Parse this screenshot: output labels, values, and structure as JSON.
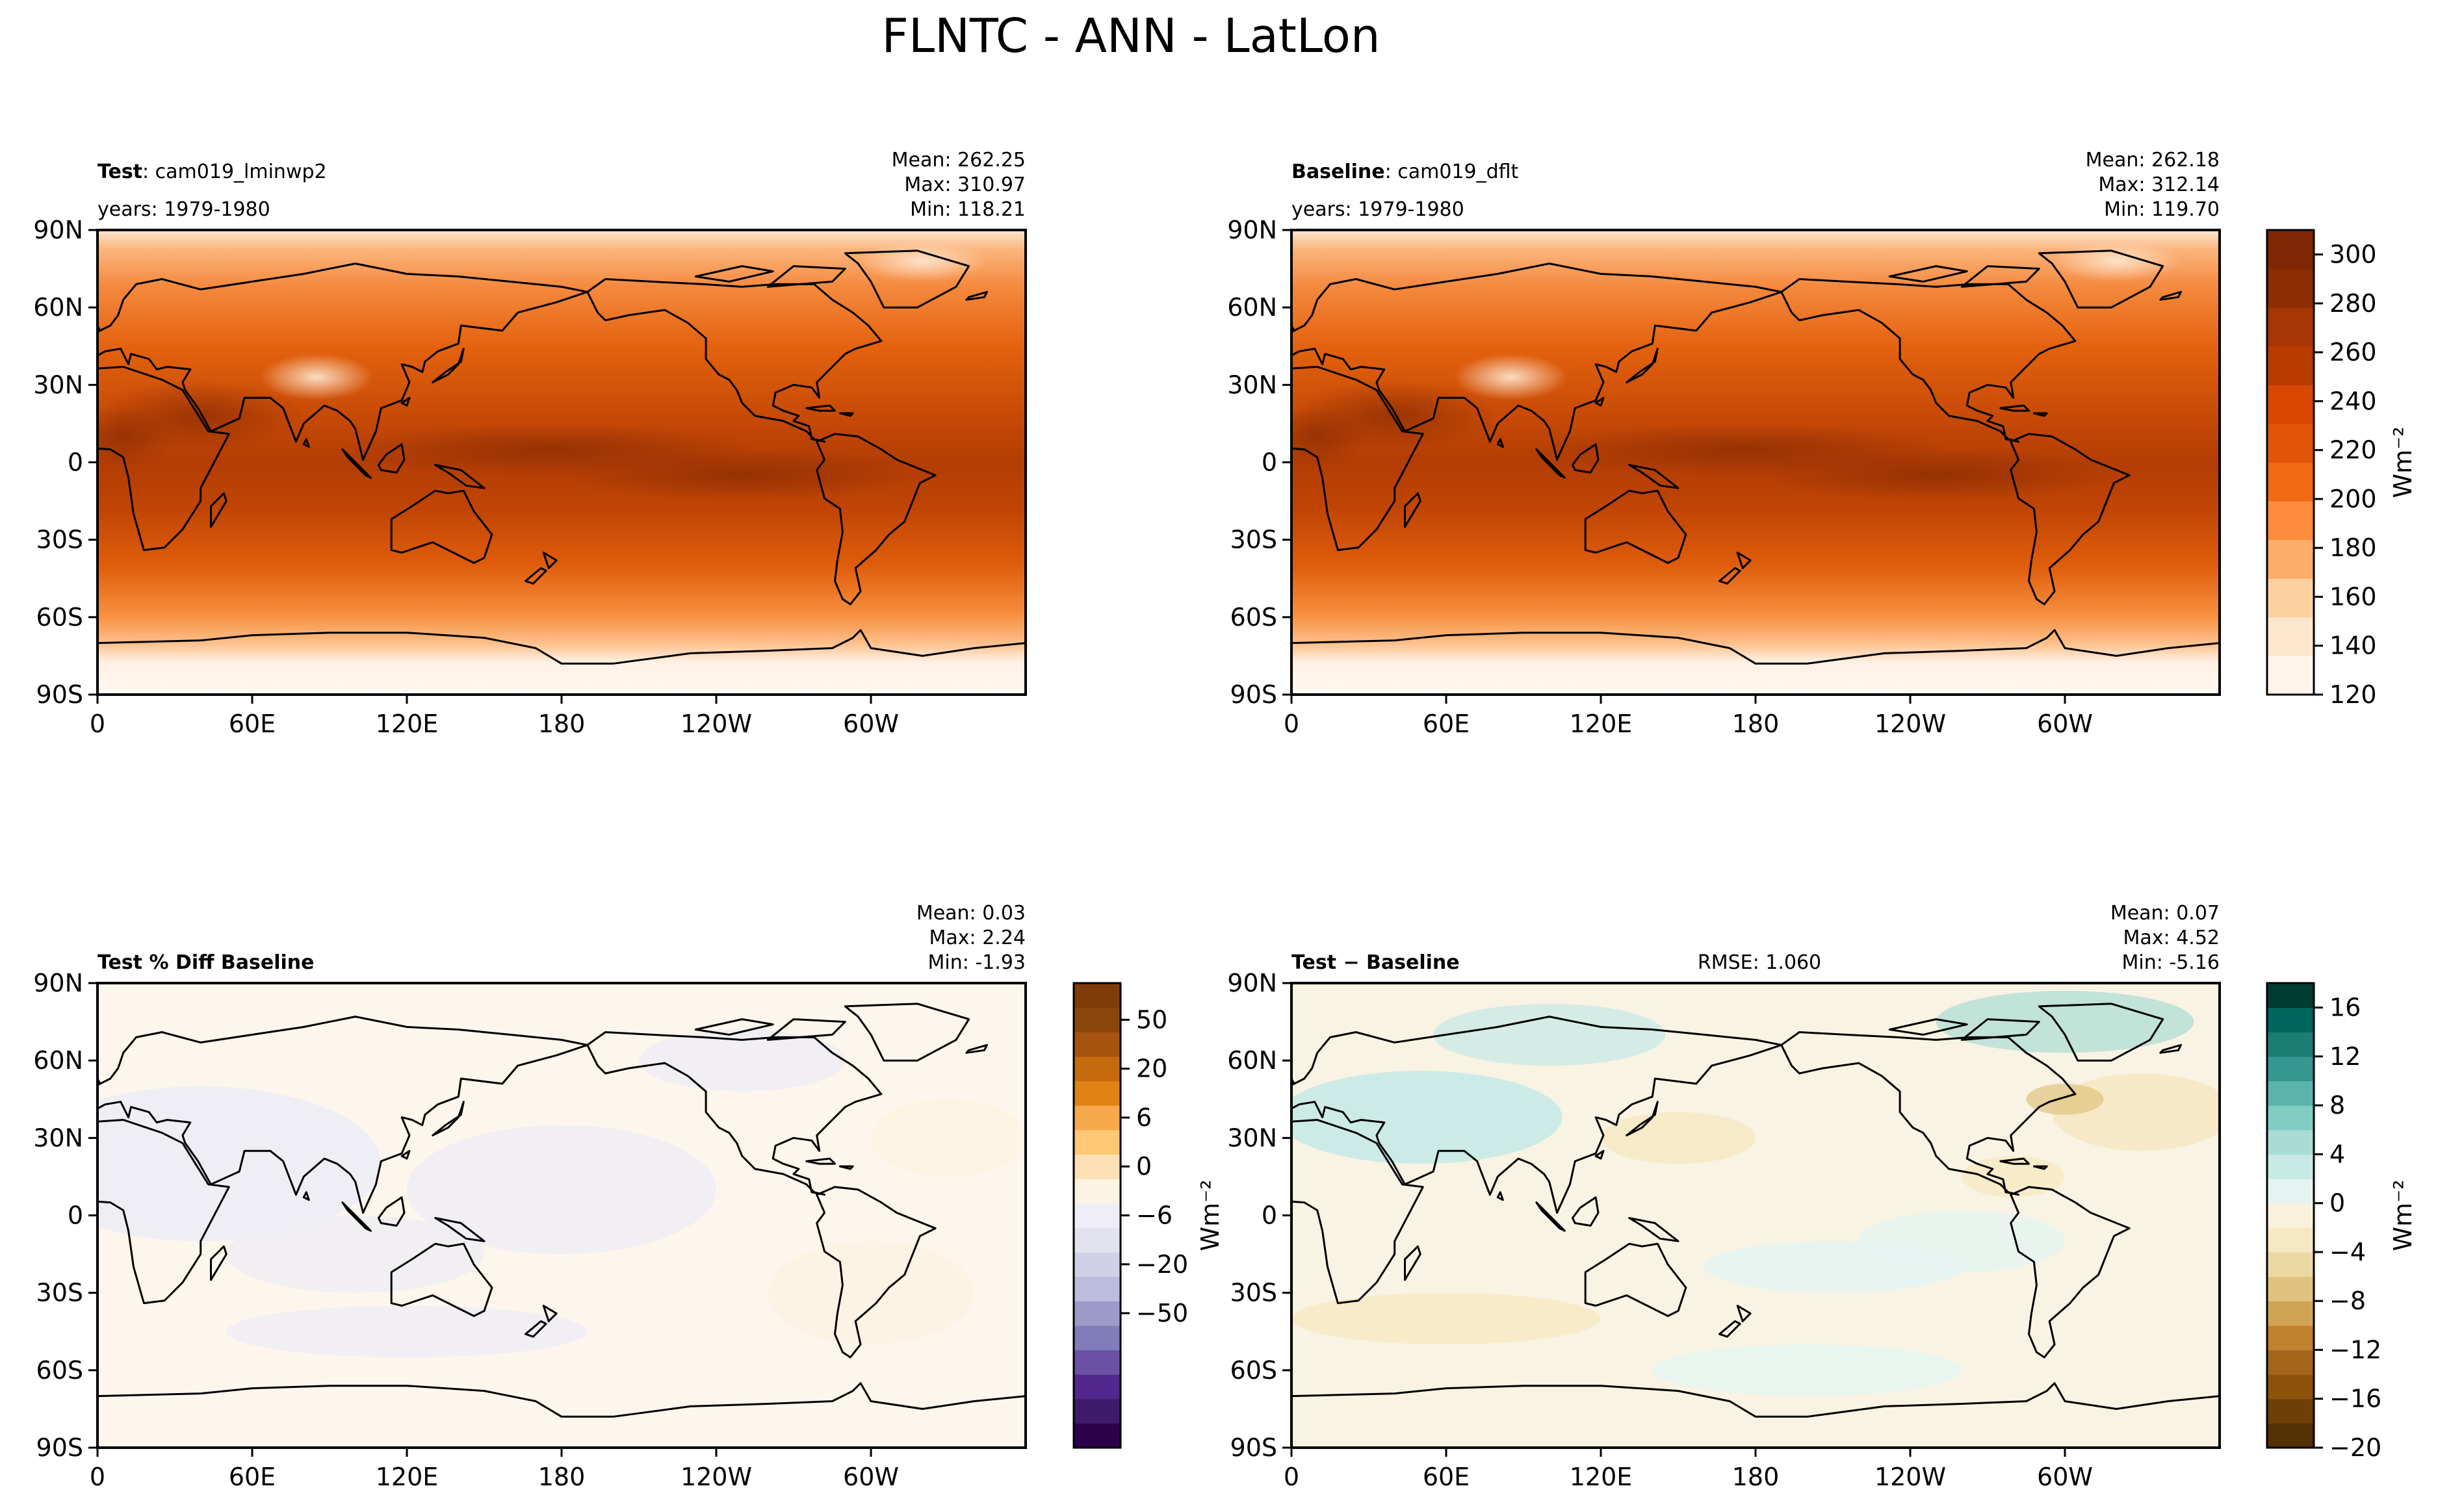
{
  "figure": {
    "title": "FLNTC - ANN - LatLon"
  },
  "chart_data": [
    {
      "type": "heatmap",
      "panel": "test",
      "label_bold": "Test",
      "label_rest": ": cam019_lminwp2",
      "years": "years: 1979-1980",
      "stats": [
        "Mean: 262.25",
        "Max: 310.97",
        "Min: 118.21"
      ],
      "x_ticks": [
        "0",
        "60E",
        "120E",
        "180",
        "120W",
        "60W"
      ],
      "y_ticks": [
        "90N",
        "60N",
        "30N",
        "0",
        "30S",
        "60S",
        "90S"
      ],
      "field": "absolute"
    },
    {
      "type": "heatmap",
      "panel": "baseline",
      "label_bold": "Baseline",
      "label_rest": ": cam019_dflt",
      "years": "years: 1979-1980",
      "stats": [
        "Mean: 262.18",
        "Max: 312.14",
        "Min: 119.70"
      ],
      "x_ticks": [
        "0",
        "60E",
        "120E",
        "180",
        "120W",
        "60W"
      ],
      "y_ticks": [
        "90N",
        "60N",
        "30N",
        "0",
        "30S",
        "60S",
        "90S"
      ],
      "field": "absolute",
      "colorbar": {
        "unit": "Wm⁻²",
        "range": [
          120,
          310
        ],
        "ticks": [
          "120",
          "140",
          "160",
          "180",
          "200",
          "220",
          "240",
          "260",
          "280",
          "300"
        ],
        "colors": [
          "#fff5eb",
          "#fee6ce",
          "#fdd0a2",
          "#fdae6b",
          "#fd8d3c",
          "#f16913",
          "#e25508",
          "#d94801",
          "#b83c02",
          "#a63603",
          "#8c2d04",
          "#7f2704"
        ]
      }
    },
    {
      "type": "heatmap",
      "panel": "pct_diff",
      "label_bold": "Test % Diff Baseline",
      "stats": [
        "Mean:  0.03",
        "Max:  2.24",
        "Min: -1.93"
      ],
      "x_ticks": [
        "0",
        "60E",
        "120E",
        "180",
        "120W",
        "60W"
      ],
      "y_ticks": [
        "90N",
        "60N",
        "30N",
        "0",
        "30S",
        "60S",
        "90S"
      ],
      "field": "pct",
      "colorbar": {
        "unit": "Wm⁻²",
        "ticks": [
          "50",
          "20",
          "6",
          "0",
          "−6",
          "−20",
          "−50"
        ],
        "colors": [
          "#2d004b",
          "#3f1a6b",
          "#54278f",
          "#6a51a3",
          "#807dba",
          "#9e9ac8",
          "#bcbddc",
          "#d0d1e6",
          "#e3e2ef",
          "#efedf5",
          "#fdf3e3",
          "#fee0b6",
          "#fdc776",
          "#f6a94a",
          "#e08214",
          "#c46b0e",
          "#a65310",
          "#8a460b",
          "#7f3b08"
        ]
      }
    },
    {
      "type": "heatmap",
      "panel": "difference",
      "label_bold": "Test − Baseline",
      "rmse": "RMSE: 1.060",
      "stats": [
        "Mean:  0.07",
        "Max:  4.52",
        "Min: -5.16"
      ],
      "x_ticks": [
        "0",
        "60E",
        "120E",
        "180",
        "120W",
        "60W"
      ],
      "y_ticks": [
        "90N",
        "60N",
        "30N",
        "0",
        "30S",
        "60S",
        "90S"
      ],
      "field": "diff",
      "colorbar": {
        "unit": "Wm⁻²",
        "range": [
          -20,
          18
        ],
        "ticks": [
          "16",
          "12",
          "8",
          "4",
          "0",
          "−4",
          "−8",
          "−12",
          "−16",
          "−20"
        ],
        "colors": [
          "#543005",
          "#6f3f08",
          "#8c510a",
          "#a4661a",
          "#bf812d",
          "#d1a355",
          "#dfc27d",
          "#ecd8a3",
          "#f6e8c3",
          "#faf1dc",
          "#e6f4f1",
          "#c7eae5",
          "#a9dcd3",
          "#80cdc1",
          "#5ab4ac",
          "#35978f",
          "#1b7d73",
          "#01665e",
          "#003c30"
        ]
      }
    }
  ]
}
